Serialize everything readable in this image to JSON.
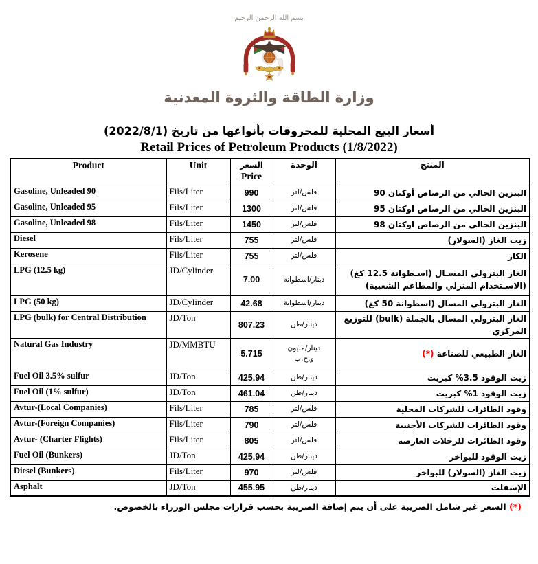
{
  "page": {
    "bismillah": "بسم الله الرحمن الرحيم",
    "ministry_name": "وزارة الطاقة والثروة المعدنية",
    "title_ar": "أسعار البيع المحلية للمحروقات بأنواعها من تاريخ (2022/8/1)",
    "title_en": "Retail Prices of Petroleum Products (1/8/2022)"
  },
  "table": {
    "head": {
      "product": "Product",
      "unit": "Unit",
      "price_ar": "السعر",
      "price_en": "Price",
      "unit_ar": "الوحدة",
      "product_ar": "المنتج"
    },
    "rows": [
      {
        "product": "Gasoline, Unleaded 90",
        "unit": "Fils/Liter",
        "price": "990",
        "unit_ar": "فلس/لتر",
        "product_ar": "البنزين الخالي من الرصاص أوكتان 90"
      },
      {
        "product": "Gasoline, Unleaded 95",
        "unit": "Fils/Liter",
        "price": "1300",
        "unit_ar": "فلس/لتر",
        "product_ar": "البنزين الخالي من الرصاص اوكتان 95"
      },
      {
        "product": "Gasoline, Unleaded 98",
        "unit": "Fils/Liter",
        "price": "1450",
        "unit_ar": "فلس/لتر",
        "product_ar": "البنزين الخالي من الرصاص اوكتان 98"
      },
      {
        "product": "Diesel",
        "unit": "Fils/Liter",
        "price": "755",
        "unit_ar": "فلس/لتر",
        "product_ar": "زيت الغاز (السولار)"
      },
      {
        "product": "Kerosene",
        "unit": "Fils/Liter",
        "price": "755",
        "unit_ar": "فلس/لتر",
        "product_ar": "الكاز"
      },
      {
        "product": "LPG (12.5 kg)",
        "unit": "JD/Cylinder",
        "price": "7.00",
        "unit_ar": "دينار/اسطوانة",
        "product_ar": "الغاز البترولي المسـال (اسـطوانة 12.5 كغ) (الاسـتخدام المنزلي والمطاعم الشعبية)",
        "tall": true
      },
      {
        "product": "LPG (50 kg)",
        "unit": "JD/Cylinder",
        "price": "42.68",
        "unit_ar": "دينار/اسطوانة",
        "product_ar": "الغاز البترولي المسال (اسطوانة 50 كغ)"
      },
      {
        "product": "LPG (bulk) for Central Distribution",
        "unit": "JD/Ton",
        "price": "807.23",
        "unit_ar": "دينار/طن",
        "product_ar": "الغاز البترولي المسال بالجملة (bulk) للتوزيع المركزي"
      },
      {
        "product": "Natural Gas Industry",
        "unit": "JD/MMBTU",
        "price": "5.715",
        "unit_ar": "دينار/مليون\nو.ح.ب",
        "product_ar": "الغاز الطبيعي للصناعة",
        "note": "(*)",
        "tall": true
      },
      {
        "product": "Fuel Oil 3.5% sulfur",
        "unit": "JD/Ton",
        "price": "425.94",
        "unit_ar": "دينار/طن",
        "product_ar": "زيت الوقود 3.5% كبريت"
      },
      {
        "product": "Fuel Oil (1% sulfur)",
        "unit": "JD/Ton",
        "price": "461.04",
        "unit_ar": "دينار/طن",
        "product_ar": "زيت الوقود 1% كبريت"
      },
      {
        "product": "Avtur-(Local Companies)",
        "unit": "Fils/Liter",
        "price": "785",
        "unit_ar": "فلس/لتر",
        "product_ar": "وقود الطائرات للشركات المحلية"
      },
      {
        "product": "Avtur-(Foreign Companies)",
        "unit": "Fils/Liter",
        "price": "790",
        "unit_ar": "فلس/لتر",
        "product_ar": "وقود الطائرات للشركات الأجنبية"
      },
      {
        "product": "Avtur- (Charter Flights)",
        "unit": "Fils/Liter",
        "price": "805",
        "unit_ar": "فلس/لتر",
        "product_ar": "وقود الطائرات للرحلات العارضة"
      },
      {
        "product": "Fuel Oil (Bunkers)",
        "unit": "JD/Ton",
        "price": "425.94",
        "unit_ar": "دينار/طن",
        "product_ar": "زيت الوقود للبواخر"
      },
      {
        "product": "Diesel (Bunkers)",
        "unit": "Fils/Liter",
        "price": "970",
        "unit_ar": "فلس/لتر",
        "product_ar": "زيت الغاز (السولار) للبواخر"
      },
      {
        "product": "Asphalt",
        "unit": "JD/Ton",
        "price": "455.95",
        "unit_ar": "دينار/طن",
        "product_ar": "الإسفلت"
      }
    ]
  },
  "footnote": {
    "marker": "(*)",
    "text": "السعر غير شامل الضريبة على أن يتم إضافة الضريبة بحسب قرارات مجلس الوزراء بالخصوص."
  },
  "colors": {
    "footnote_red": "#ff0000",
    "border_black": "#000000",
    "emblem_maroon": "#a32c26",
    "emblem_gold": "#c08a30",
    "emblem_globe": "#c06a28",
    "calligraphy_gray": "#6f635b"
  }
}
